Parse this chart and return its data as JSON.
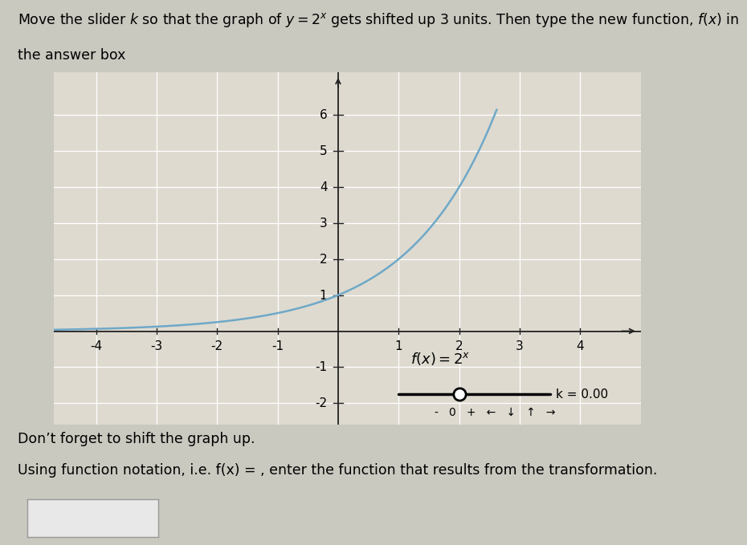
{
  "title_text": "Move the slider $k$ so that the graph of $y = 2^x$ gets shifted up 3 units. Then type the new function, $f(x)$ in\nthe answer box",
  "xlim": [
    -4.7,
    5.0
  ],
  "ylim": [
    -2.6,
    7.2
  ],
  "xticks": [
    -4,
    -3,
    -2,
    -1,
    1,
    2,
    3,
    4
  ],
  "yticks": [
    -2,
    -1,
    1,
    2,
    3,
    4,
    5,
    6
  ],
  "curve_color": "#6fa8c8",
  "curve_linewidth": 1.8,
  "bg_color": "#cac9c0",
  "plot_bg_color": "#dedad0",
  "grid_color": "#b8b8b0",
  "axis_color": "#222222",
  "note_line1": "Don’t forget to shift the graph up.",
  "note_line2": "Using function notation, i.e. f(x) = , enter the function that results from the transformation."
}
